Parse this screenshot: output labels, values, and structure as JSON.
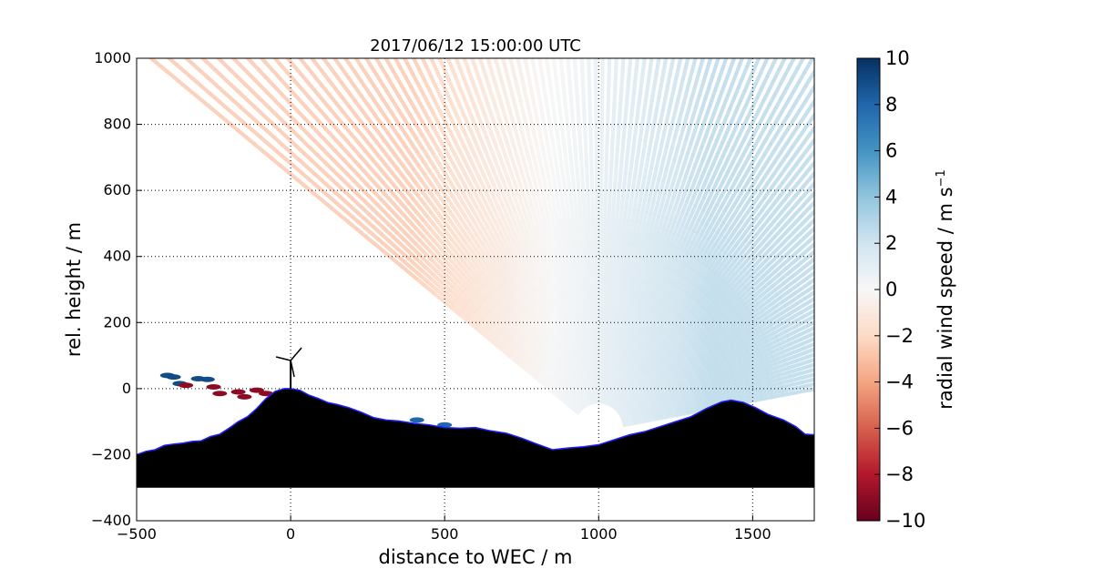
{
  "chart_data": {
    "type": "heatmap",
    "title": "2017/06/12 15:00:00 UTC",
    "xlabel": "distance to WEC / m",
    "ylabel": "rel. height / m",
    "xlim": [
      -500,
      1700
    ],
    "ylim": [
      -400,
      1000
    ],
    "x_ticks": [
      -500,
      0,
      500,
      1000,
      1500
    ],
    "y_ticks": [
      -400,
      -200,
      0,
      200,
      400,
      600,
      800,
      1000
    ],
    "x_tick_labels": [
      "−500",
      "0",
      "500",
      "1000",
      "1500"
    ],
    "y_tick_labels": [
      "−400",
      "−200",
      "0",
      "200",
      "400",
      "600",
      "800",
      "1000"
    ],
    "grid": true,
    "colorbar": {
      "label": "radial wind speed / m s⁻¹",
      "label_main": "radial wind speed / m s",
      "label_sup": "−1",
      "range": [
        -10,
        10
      ],
      "ticks": [
        10,
        8,
        6,
        4,
        2,
        0,
        -2,
        -4,
        -6,
        -8,
        -10
      ],
      "tick_labels": [
        "10",
        "8",
        "6",
        "4",
        "2",
        "0",
        "−2",
        "−4",
        "−6",
        "−8",
        "−10"
      ],
      "colormap": "RdBu",
      "colors": [
        "#67001f",
        "#b2182b",
        "#d6604d",
        "#f4a582",
        "#fddbc7",
        "#f7f7f7",
        "#d1e5f0",
        "#92c5de",
        "#4393c3",
        "#2166ac",
        "#053061"
      ]
    },
    "scan": {
      "lidar_position": [
        1000,
        -125
      ],
      "elevation_range_deg": [
        10,
        143
      ],
      "radial_wind": {
        "near_wec_left": -3.5,
        "mid_field": -2.5,
        "right_field": 2.5,
        "zero_crossing_x": 850
      }
    },
    "wec": {
      "x": 0,
      "hub_height": 85
    },
    "terrain": {
      "base_height": -300,
      "profile": [
        [
          -500,
          -200
        ],
        [
          -470,
          -190
        ],
        [
          -440,
          -185
        ],
        [
          -410,
          -172
        ],
        [
          -380,
          -168
        ],
        [
          -350,
          -165
        ],
        [
          -320,
          -160
        ],
        [
          -290,
          -158
        ],
        [
          -260,
          -145
        ],
        [
          -230,
          -138
        ],
        [
          -200,
          -120
        ],
        [
          -170,
          -100
        ],
        [
          -140,
          -85
        ],
        [
          -110,
          -60
        ],
        [
          -80,
          -30
        ],
        [
          -50,
          -8
        ],
        [
          -20,
          0
        ],
        [
          0,
          0
        ],
        [
          30,
          -5
        ],
        [
          60,
          -20
        ],
        [
          90,
          -30
        ],
        [
          120,
          -42
        ],
        [
          150,
          -48
        ],
        [
          190,
          -58
        ],
        [
          230,
          -72
        ],
        [
          270,
          -88
        ],
        [
          310,
          -95
        ],
        [
          350,
          -98
        ],
        [
          400,
          -105
        ],
        [
          450,
          -110
        ],
        [
          500,
          -118
        ],
        [
          550,
          -120
        ],
        [
          600,
          -118
        ],
        [
          650,
          -128
        ],
        [
          700,
          -135
        ],
        [
          750,
          -150
        ],
        [
          800,
          -168
        ],
        [
          850,
          -185
        ],
        [
          900,
          -180
        ],
        [
          950,
          -176
        ],
        [
          1000,
          -170
        ],
        [
          1050,
          -155
        ],
        [
          1100,
          -140
        ],
        [
          1150,
          -130
        ],
        [
          1200,
          -115
        ],
        [
          1250,
          -100
        ],
        [
          1300,
          -85
        ],
        [
          1350,
          -60
        ],
        [
          1400,
          -40
        ],
        [
          1430,
          -35
        ],
        [
          1470,
          -42
        ],
        [
          1510,
          -58
        ],
        [
          1550,
          -78
        ],
        [
          1600,
          -95
        ],
        [
          1640,
          -115
        ],
        [
          1670,
          -138
        ],
        [
          1700,
          -140
        ]
      ]
    },
    "near_ground_returns": [
      {
        "x": -400,
        "y": 40,
        "value": 9
      },
      {
        "x": -380,
        "y": 35,
        "value": 9
      },
      {
        "x": -360,
        "y": 15,
        "value": 9
      },
      {
        "x": -340,
        "y": 10,
        "value": -9
      },
      {
        "x": -300,
        "y": 30,
        "value": 9
      },
      {
        "x": -270,
        "y": 28,
        "value": 9
      },
      {
        "x": -250,
        "y": 5,
        "value": -9
      },
      {
        "x": -230,
        "y": -15,
        "value": -9
      },
      {
        "x": -170,
        "y": -10,
        "value": -9
      },
      {
        "x": -150,
        "y": -25,
        "value": -9
      },
      {
        "x": -110,
        "y": -5,
        "value": -9
      },
      {
        "x": -80,
        "y": -15,
        "value": -9
      },
      {
        "x": 410,
        "y": -95,
        "value": 8
      },
      {
        "x": 500,
        "y": -110,
        "value": 8
      }
    ]
  }
}
